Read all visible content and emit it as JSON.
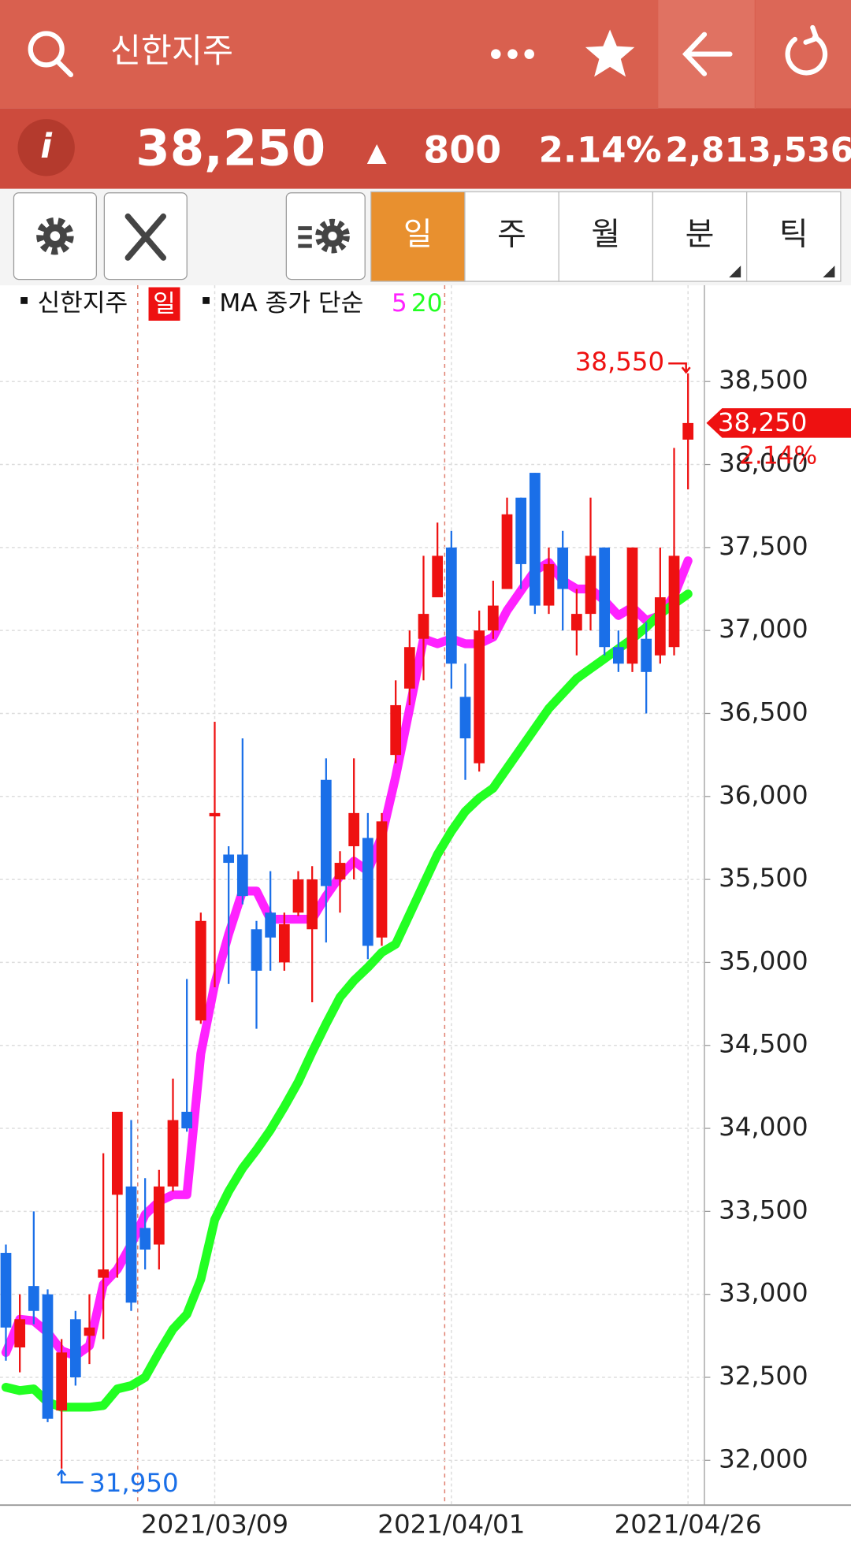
{
  "header": {
    "title": "신한지주",
    "price": "38,250",
    "change_arrow": "▲",
    "change": "800",
    "change_pct": "2.14%",
    "volume": "2,813,536"
  },
  "toolbar": {
    "tabs": [
      "일",
      "주",
      "월",
      "분",
      "틱"
    ],
    "active_tab": 0
  },
  "chart_data": {
    "type": "candlestick",
    "legend": {
      "symbol": "신한지주",
      "period": "일",
      "ma_label": "MA 종가 단순"
    },
    "categories": [
      null,
      null,
      null,
      null,
      null,
      null,
      null,
      null,
      null,
      null,
      null,
      null,
      null,
      null,
      null,
      "2021/03/09",
      null,
      null,
      null,
      null,
      null,
      null,
      null,
      null,
      null,
      null,
      null,
      null,
      null,
      null,
      null,
      null,
      "2021/04/01",
      null,
      null,
      null,
      null,
      null,
      null,
      null,
      null,
      null,
      null,
      null,
      null,
      null,
      null,
      null,
      null,
      "2021/04/26"
    ],
    "open": [
      33250,
      32680,
      33050,
      33000,
      32300,
      32850,
      32750,
      33100,
      33600,
      33650,
      33400,
      33300,
      33650,
      34100,
      34650,
      35880,
      35650,
      35650,
      35200,
      35300,
      35000,
      35300,
      35200,
      36100,
      35500,
      35700,
      35750,
      35150,
      36250,
      36650,
      36950,
      37200,
      37500,
      36600,
      36200,
      37000,
      37250,
      37800,
      37950,
      37150,
      37500,
      37000,
      37100,
      37500,
      36900,
      36800,
      36950,
      36850,
      36900,
      38150
    ],
    "high": [
      33300,
      33000,
      33500,
      33030,
      32730,
      32900,
      33000,
      33850,
      34100,
      34050,
      33700,
      33750,
      34300,
      34900,
      35300,
      36450,
      35700,
      36350,
      35250,
      35550,
      35300,
      35550,
      35580,
      36230,
      35670,
      36230,
      35900,
      35900,
      36700,
      37000,
      37450,
      37650,
      37600,
      36800,
      37120,
      37300,
      37800,
      37800,
      37950,
      37500,
      37600,
      37250,
      37800,
      37500,
      37000,
      37500,
      37050,
      37500,
      38100,
      38550
    ],
    "low": [
      32600,
      32530,
      32820,
      32230,
      31950,
      32450,
      32580,
      32730,
      33100,
      32900,
      33150,
      33150,
      33620,
      33980,
      34630,
      34850,
      34870,
      35350,
      34600,
      34950,
      34950,
      35280,
      34760,
      35120,
      35300,
      35500,
      35020,
      35100,
      36200,
      36550,
      36700,
      37200,
      36650,
      36100,
      36150,
      36950,
      37250,
      37250,
      37100,
      37100,
      37000,
      36850,
      37000,
      36850,
      36750,
      36750,
      36500,
      36800,
      36850,
      37850
    ],
    "close": [
      32800,
      32850,
      32900,
      32250,
      32650,
      32500,
      32800,
      33150,
      34100,
      32950,
      33270,
      33650,
      34050,
      34000,
      35250,
      35900,
      35600,
      35400,
      34950,
      35150,
      35230,
      35500,
      35500,
      35460,
      35600,
      35900,
      35100,
      35850,
      36550,
      36900,
      37100,
      37450,
      36800,
      36350,
      37000,
      37150,
      37700,
      37400,
      37150,
      37400,
      37250,
      37100,
      37450,
      36900,
      36800,
      37500,
      36750,
      37200,
      37450,
      38250
    ],
    "up_color": "#ee1111",
    "down_color": "#1a6fe8",
    "ma": [
      {
        "name": "5",
        "color": "#ff22ff",
        "values": [
          32650,
          32850,
          32840,
          32770,
          32660,
          32630,
          32690,
          33060,
          33150,
          33300,
          33480,
          33560,
          33600,
          33600,
          34450,
          34870,
          35170,
          35430,
          35430,
          35260,
          35260,
          35260,
          35260,
          35400,
          35520,
          35610,
          35550,
          35760,
          36120,
          36530,
          36950,
          36920,
          36950,
          36920,
          36920,
          36960,
          37120,
          37240,
          37360,
          37410,
          37300,
          37250,
          37250,
          37180,
          37090,
          37140,
          37060,
          37090,
          37210,
          37420
        ]
      },
      {
        "name": "20",
        "color": "#22ff22",
        "values": [
          32440,
          32420,
          32430,
          32350,
          32320,
          32320,
          32320,
          32330,
          32430,
          32450,
          32500,
          32650,
          32790,
          32880,
          33090,
          33450,
          33620,
          33760,
          33870,
          33990,
          34130,
          34280,
          34460,
          34630,
          34790,
          34890,
          34970,
          35060,
          35110,
          35290,
          35470,
          35650,
          35790,
          35910,
          35990,
          36050,
          36170,
          36290,
          36410,
          36530,
          36620,
          36710,
          36770,
          36830,
          36890,
          36950,
          37020,
          37100,
          37160,
          37220
        ]
      }
    ],
    "ylim": [
      31730,
      39080
    ],
    "yticks": [
      {
        "value": 32000,
        "label": "32,000"
      },
      {
        "value": 32500,
        "label": "32,500"
      },
      {
        "value": 33000,
        "label": "33,000"
      },
      {
        "value": 33500,
        "label": "33,500"
      },
      {
        "value": 34000,
        "label": "34,000"
      },
      {
        "value": 34500,
        "label": "34,500"
      },
      {
        "value": 35000,
        "label": "35,000"
      },
      {
        "value": 35500,
        "label": "35,500"
      },
      {
        "value": 36000,
        "label": "36,000"
      },
      {
        "value": 36500,
        "label": "36,500"
      },
      {
        "value": 37000,
        "label": "37,000"
      },
      {
        "value": 37500,
        "label": "37,500"
      },
      {
        "value": 38000,
        "label": "38,000"
      },
      {
        "value": 38500,
        "label": "38,500"
      }
    ],
    "grid": true,
    "annotations": {
      "high": {
        "value": 38550,
        "label": "38,550"
      },
      "low": {
        "value": 31950,
        "label": "31,950"
      },
      "last": {
        "value": 38250,
        "label": "38,250"
      },
      "last_pct": "2.14%"
    }
  }
}
